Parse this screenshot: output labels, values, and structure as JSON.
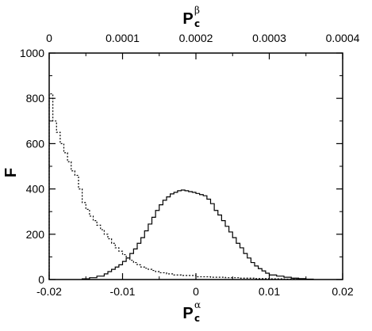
{
  "chart_data": {
    "type": "line",
    "style": "step-histogram",
    "xlabel": {
      "main": "P",
      "sub": "c",
      "sup": "α"
    },
    "x2label": {
      "main": "P",
      "sub": "c",
      "sup": "β"
    },
    "ylabel": "F",
    "xlim": [
      -0.02,
      0.02
    ],
    "x2lim": [
      0,
      0.0004
    ],
    "ylim": [
      0,
      1000
    ],
    "x_ticks": [
      "-0.02",
      "-0.01",
      "0",
      "0.01",
      "0.02"
    ],
    "x2_ticks": [
      "0",
      "0.0001",
      "0.0002",
      "0.0003",
      "0.0004"
    ],
    "y_ticks": [
      "0",
      "200",
      "400",
      "600",
      "800",
      "1000"
    ],
    "grid": false,
    "series": [
      {
        "axis": "bottom",
        "line_style": "solid",
        "color": "#000000",
        "bin_edges": [
          -0.0155,
          -0.0145,
          -0.0135,
          -0.0125,
          -0.012,
          -0.0115,
          -0.011,
          -0.0105,
          -0.01,
          -0.0095,
          -0.009,
          -0.0085,
          -0.008,
          -0.0075,
          -0.007,
          -0.0065,
          -0.006,
          -0.0055,
          -0.005,
          -0.0045,
          -0.004,
          -0.0035,
          -0.003,
          -0.0025,
          -0.002,
          -0.0015,
          -0.001,
          -0.0005,
          0,
          0.0005,
          0.001,
          0.0015,
          0.002,
          0.0025,
          0.003,
          0.0035,
          0.004,
          0.0045,
          0.005,
          0.0055,
          0.006,
          0.0065,
          0.007,
          0.0075,
          0.008,
          0.0085,
          0.009,
          0.0095,
          0.01,
          0.011,
          0.012,
          0.013,
          0.014,
          0.015,
          0.016
        ],
        "counts": [
          3,
          8,
          15,
          25,
          35,
          45,
          55,
          65,
          80,
          95,
          115,
          135,
          160,
          185,
          215,
          245,
          275,
          305,
          330,
          350,
          365,
          378,
          385,
          392,
          395,
          392,
          388,
          385,
          380,
          375,
          370,
          355,
          335,
          305,
          285,
          260,
          235,
          210,
          185,
          160,
          140,
          115,
          95,
          75,
          60,
          48,
          38,
          28,
          20,
          15,
          10,
          6,
          4,
          2
        ]
      },
      {
        "axis": "top",
        "line_style": "dotted",
        "color": "#000000",
        "bin_edges": [
          0,
          5e-06,
          1e-05,
          1.5e-05,
          2e-05,
          2.5e-05,
          3e-05,
          3.5e-05,
          4e-05,
          4.5e-05,
          5e-05,
          5.5e-05,
          6e-05,
          6.5e-05,
          7e-05,
          7.5e-05,
          8e-05,
          8.5e-05,
          9e-05,
          9.5e-05,
          0.0001,
          0.000105,
          0.00011,
          0.000115,
          0.00012,
          0.000125,
          0.00013,
          0.000135,
          0.00014,
          0.000145,
          0.00015,
          0.00016,
          0.00017,
          0.00018,
          0.0002,
          0.00022,
          0.00024,
          0.00026,
          0.00028,
          0.0003,
          0.00032,
          0.00034
        ],
        "counts": [
          820,
          700,
          650,
          600,
          560,
          520,
          480,
          460,
          400,
          340,
          310,
          280,
          260,
          240,
          220,
          200,
          180,
          160,
          140,
          125,
          110,
          95,
          85,
          75,
          65,
          55,
          50,
          45,
          40,
          35,
          30,
          25,
          20,
          18,
          12,
          10,
          8,
          6,
          4,
          3,
          2
        ]
      }
    ]
  }
}
